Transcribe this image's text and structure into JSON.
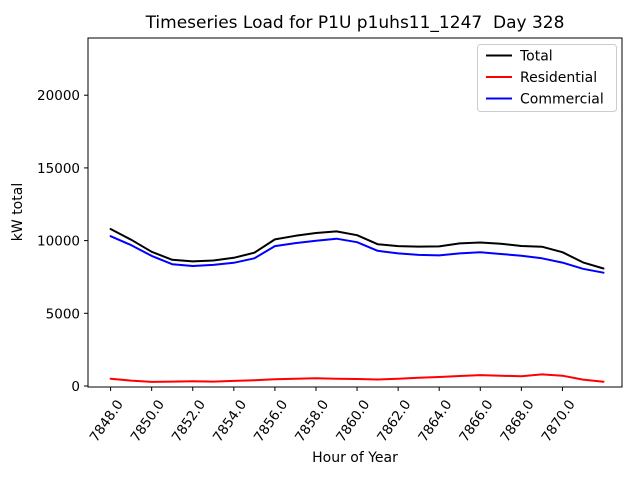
{
  "figure": {
    "title": "Timeseries Load for P1U p1uhs11_1247  Day 328"
  },
  "chart_data": {
    "type": "line",
    "title": "Timeseries Load for P1U p1uhs11_1247  Day 328",
    "xlabel": "Hour of Year",
    "ylabel": "kW total",
    "xlim": [
      7846.9,
      7872.9
    ],
    "ylim": [
      0,
      23900
    ],
    "grid": false,
    "legend_position": "upper right",
    "background": "#ffffff",
    "x": [
      7848,
      7849,
      7850,
      7851,
      7852,
      7853,
      7854,
      7855,
      7856,
      7857,
      7858,
      7859,
      7860,
      7861,
      7862,
      7863,
      7864,
      7865,
      7866,
      7867,
      7868,
      7869,
      7870,
      7871,
      7872
    ],
    "series": [
      {
        "name": "Total",
        "color": "#000000",
        "values": [
          10800,
          10060,
          9230,
          8680,
          8570,
          8630,
          8820,
          9170,
          10080,
          10330,
          10520,
          10630,
          10370,
          9750,
          9620,
          9590,
          9600,
          9810,
          9870,
          9790,
          9630,
          9580,
          9200,
          8500,
          8080
        ]
      },
      {
        "name": "Residential",
        "color": "#ff0000",
        "values": [
          500,
          370,
          280,
          300,
          320,
          300,
          350,
          390,
          460,
          500,
          530,
          500,
          480,
          450,
          500,
          570,
          620,
          690,
          750,
          710,
          670,
          800,
          710,
          440,
          290
        ]
      },
      {
        "name": "Commercial",
        "color": "#0000ff",
        "values": [
          10300,
          9690,
          8950,
          8380,
          8250,
          8330,
          8470,
          8780,
          9620,
          9830,
          9990,
          10130,
          9890,
          9300,
          9120,
          9020,
          8980,
          9120,
          9200,
          9080,
          8960,
          8780,
          8490,
          8060,
          7790
        ]
      }
    ],
    "xticks": {
      "values": [
        7848,
        7850,
        7852,
        7854,
        7856,
        7858,
        7860,
        7862,
        7864,
        7866,
        7868,
        7870
      ],
      "labels": [
        "7848.0",
        "7850.0",
        "7852.0",
        "7854.0",
        "7856.0",
        "7858.0",
        "7860.0",
        "7862.0",
        "7864.0",
        "7866.0",
        "7868.0",
        "7870.0"
      ],
      "rotation_deg": 55
    },
    "yticks": {
      "values": [
        0,
        5000,
        10000,
        15000,
        20000
      ],
      "labels": [
        "0",
        "5000",
        "10000",
        "15000",
        "20000"
      ]
    }
  }
}
